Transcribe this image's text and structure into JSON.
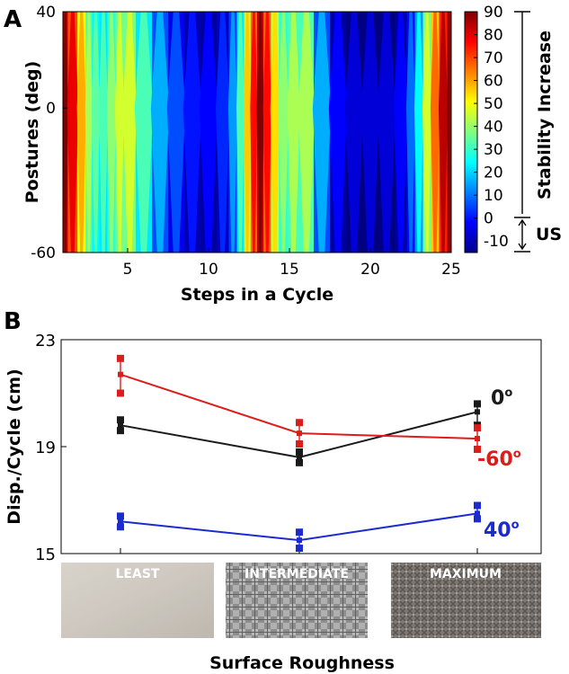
{
  "chart_data": [
    {
      "panel_label": "A",
      "type": "heatmap",
      "subtype": "filled-contour",
      "xlabel": "Steps in a Cycle",
      "ylabel": "Postures (deg)",
      "x_ticks": [
        "5",
        "10",
        "15",
        "20",
        "25"
      ],
      "y_ticks": [
        "40",
        "0",
        "-60"
      ],
      "xlim": [
        1,
        25
      ],
      "ylim": [
        -60,
        40
      ],
      "x": [
        1,
        1.6,
        2.2,
        2.6,
        3,
        3.5,
        4,
        4.5,
        5,
        6,
        7,
        8,
        9,
        10,
        11,
        11.5,
        12,
        12.4,
        12.8,
        13.2,
        13.6,
        14.1,
        14.6,
        15.2,
        16,
        17,
        18,
        19,
        20,
        21,
        22,
        22.5,
        23,
        23.5,
        24,
        24.5,
        25
      ],
      "values": [
        90,
        75,
        55,
        38,
        30,
        28,
        35,
        42,
        42,
        28,
        12,
        2,
        -4,
        -6,
        -2,
        10,
        28,
        52,
        72,
        88,
        72,
        50,
        35,
        38,
        38,
        12,
        -6,
        -10,
        -10,
        -10,
        -6,
        5,
        20,
        42,
        62,
        80,
        92
      ],
      "colorbar": {
        "ticks": [
          "90",
          "80",
          "70",
          "60",
          "50",
          "40",
          "30",
          "20",
          "10",
          "0",
          "-10"
        ],
        "range": [
          -15,
          90
        ],
        "annotations": [
          {
            "label": "Stability Increase",
            "from": 0,
            "to": 90
          },
          {
            "label": "US",
            "from": -15,
            "to": 0
          }
        ]
      }
    },
    {
      "panel_label": "B",
      "type": "line",
      "xlabel": "Surface Roughness",
      "ylabel": "Disp./Cycle (cm)",
      "categories": [
        "LEAST",
        "INTERMEDIATE",
        "MAXIMUM"
      ],
      "y_ticks": [
        "23",
        "19",
        "15"
      ],
      "ylim": [
        15,
        23
      ],
      "series": [
        {
          "name": "0",
          "label_suffix": "o",
          "color": "#1a1a1a",
          "values": [
            19.8,
            18.6,
            20.3
          ],
          "err_low": [
            19.6,
            18.4,
            19.8
          ],
          "err_high": [
            20.0,
            18.8,
            20.6
          ]
        },
        {
          "name": "-60",
          "label_suffix": "o",
          "color": "#dd1c1c",
          "values": [
            21.7,
            19.5,
            19.3
          ],
          "err_low": [
            21.0,
            19.1,
            18.9
          ],
          "err_high": [
            22.3,
            19.9,
            19.7
          ]
        },
        {
          "name": "40",
          "label_suffix": "o",
          "color": "#1c2bd0",
          "values": [
            16.2,
            15.5,
            16.5
          ],
          "err_low": [
            16.0,
            15.2,
            16.3
          ],
          "err_high": [
            16.4,
            15.8,
            16.8
          ]
        }
      ]
    }
  ],
  "colors": {
    "red": "#dd1c1c",
    "blue": "#1c2bd0",
    "black": "#1a1a1a"
  }
}
